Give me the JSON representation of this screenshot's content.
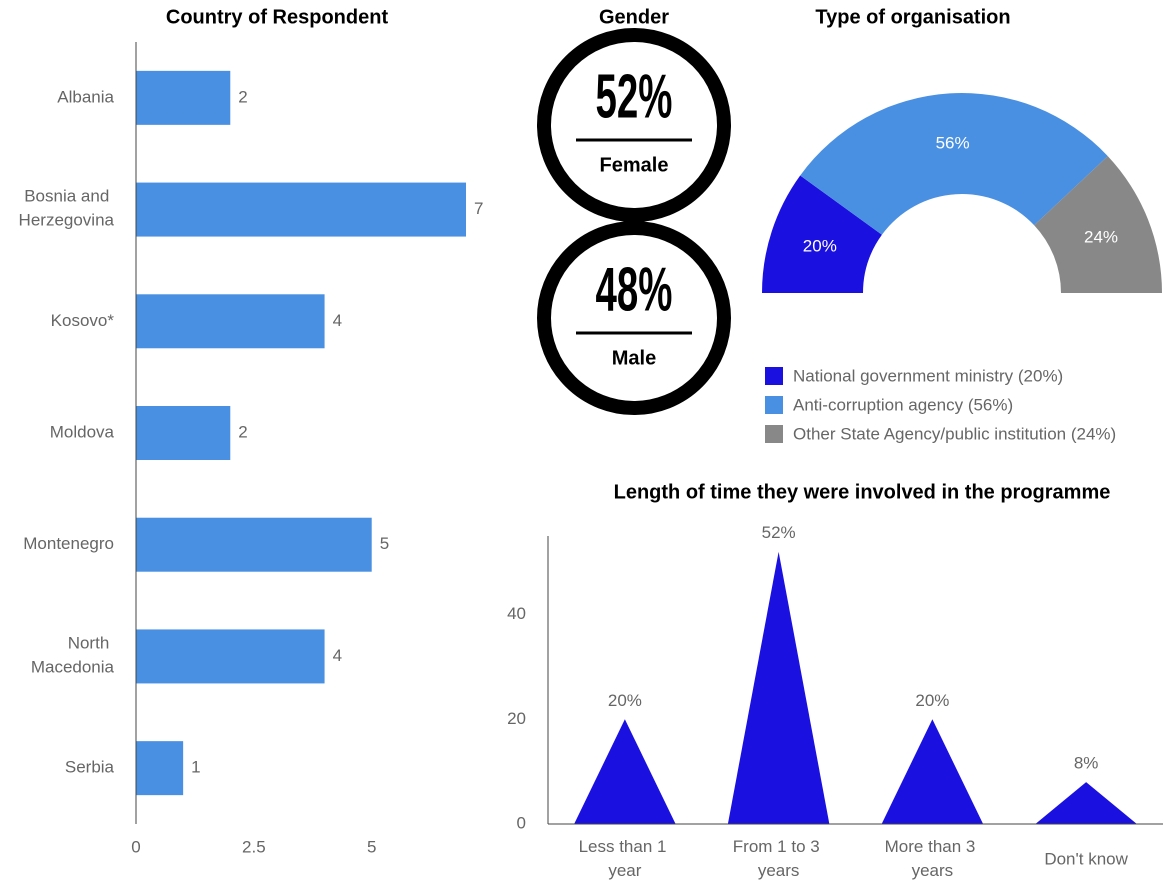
{
  "chart_data": [
    {
      "type": "hbar",
      "title": "Country of Respondent",
      "categories": [
        "Albania",
        "Bosnia and Herzegovina",
        "Kosovo*",
        "Moldova",
        "Montenegro",
        "North Macedonia",
        "Serbia"
      ],
      "values": [
        2,
        7,
        4,
        2,
        5,
        4,
        1
      ],
      "color": "#4a90e2",
      "xlim": [
        0,
        7
      ],
      "xticks": [
        0,
        2.5,
        5
      ]
    },
    {
      "type": "stat",
      "title": "Gender",
      "categories": [
        "Female",
        "Male"
      ],
      "values": [
        52,
        48
      ],
      "value_labels": [
        "52%",
        "48%"
      ],
      "color": "#000000"
    },
    {
      "type": "pie",
      "title": "Type of organisation",
      "half": true,
      "categories": [
        "National government ministry (20%)",
        "Anti-corruption agency (56%)",
        "Other State Agency/public institution (24%)"
      ],
      "values": [
        20,
        56,
        24
      ],
      "value_labels": [
        "20%",
        "56%",
        "24%"
      ],
      "colors": [
        "#1a10e0",
        "#4a90e2",
        "#888888"
      ],
      "legend": "bottom"
    },
    {
      "type": "triangle",
      "title": "Length of time they were involved in the programme",
      "categories": [
        "Less than 1 year",
        "From 1 to 3 years",
        "More than 3 years",
        "Don't know"
      ],
      "values": [
        20,
        52,
        20,
        8
      ],
      "value_labels": [
        "20%",
        "52%",
        "20%",
        "8%"
      ],
      "color": "#1a10e0",
      "ylim": [
        0,
        55
      ],
      "yticks": [
        0,
        20,
        40
      ]
    }
  ]
}
